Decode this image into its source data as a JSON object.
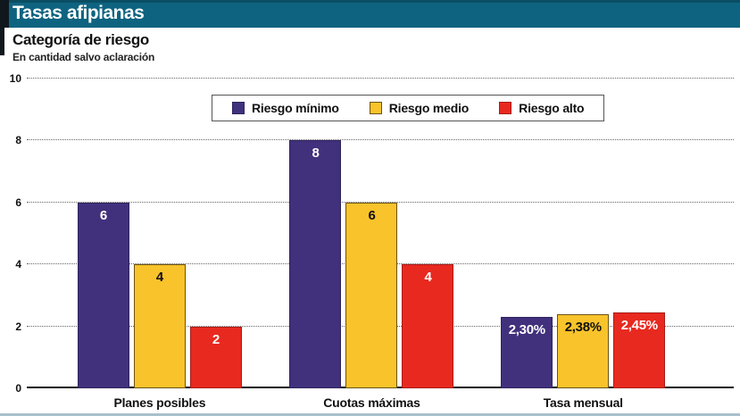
{
  "header": {
    "title": "Tasas afipianas"
  },
  "subtitle": {
    "title": "Categoría de riesgo",
    "note": "En cantidad salvo aclaración"
  },
  "colors": {
    "header_teal": "#0e6480",
    "riesgo_minimo": "#41307c",
    "riesgo_medio": "#f9c32b",
    "riesgo_alto": "#e8291f"
  },
  "chart_data": {
    "type": "bar",
    "title": "Categoría de riesgo",
    "subtitle": "En cantidad salvo aclaración",
    "categories": [
      "Planes posibles",
      "Cuotas máximas",
      "Tasa mensual"
    ],
    "series": [
      {
        "name": "Riesgo mínimo",
        "color": "#41307c",
        "border_color": "rgba(0,0,0,0.25)",
        "label_color": "#ffffff",
        "values": [
          6,
          8,
          2.3
        ],
        "labels": [
          "6",
          "8",
          "2,30%"
        ]
      },
      {
        "name": "Riesgo medio",
        "color": "#f9c32b",
        "border_color": "rgba(60,45,10,0.75)",
        "label_color": "#111111",
        "values": [
          4,
          6,
          2.38
        ],
        "labels": [
          "4",
          "6",
          "2,38%"
        ]
      },
      {
        "name": "Riesgo alto",
        "color": "#e8291f",
        "border_color": "rgba(90,10,10,0.45)",
        "label_color": "#ffffff",
        "values": [
          2,
          4,
          2.45
        ],
        "labels": [
          "2",
          "4",
          "2,45%"
        ]
      }
    ],
    "xlabel": "",
    "ylabel": "",
    "ylim": [
      0,
      10
    ],
    "yticks": [
      0,
      2,
      4,
      6,
      8,
      10
    ],
    "grid": "horizontal-dotted",
    "legend_position": "top-center"
  }
}
